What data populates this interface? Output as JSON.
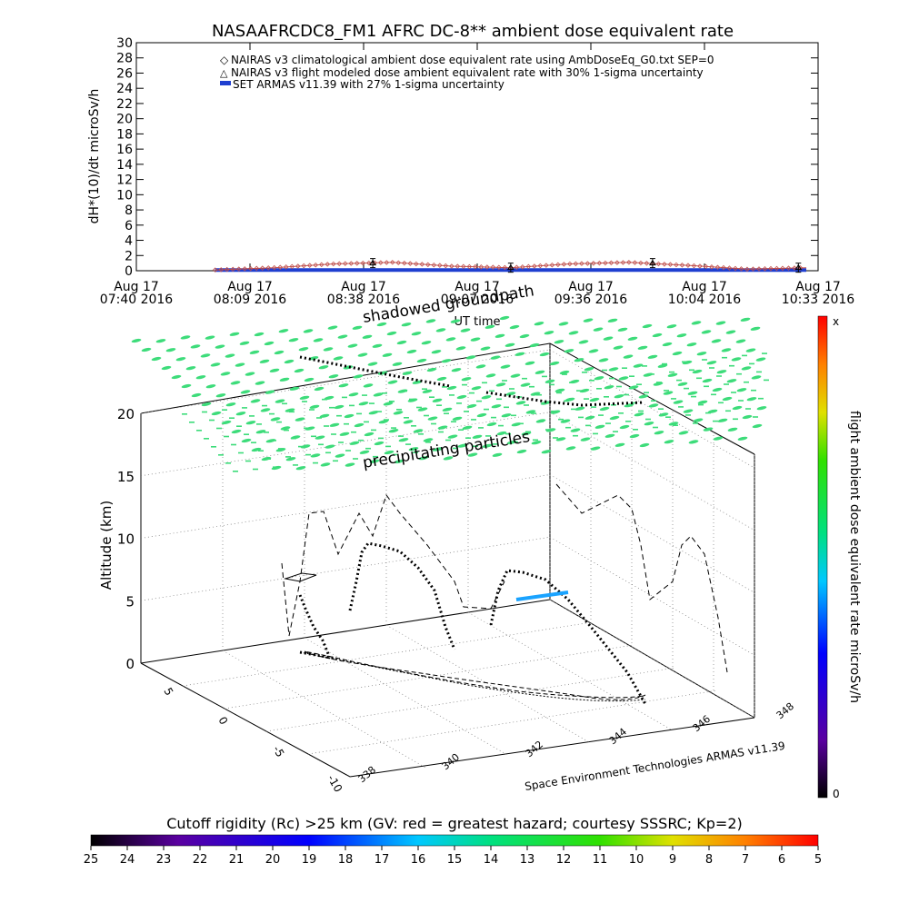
{
  "title": "NASAAFRCDC8_FM1 AFRC DC-8** ambient dose equivalent rate",
  "top_chart": {
    "ylabel": "dH*(10)/dt microSv/h",
    "xlabel": "UT time",
    "ylim": [
      0,
      30
    ],
    "yticks": [
      "0",
      "2",
      "4",
      "6",
      "8",
      "10",
      "12",
      "14",
      "16",
      "18",
      "20",
      "22",
      "24",
      "26",
      "28",
      "30"
    ],
    "xticks": [
      {
        "date": "Aug 17",
        "time": "07:40 2016"
      },
      {
        "date": "Aug 17",
        "time": "08:09 2016"
      },
      {
        "date": "Aug 17",
        "time": "08:38 2016"
      },
      {
        "date": "Aug 17",
        "time": "09:07 2016"
      },
      {
        "date": "Aug 17",
        "time": "09:36 2016"
      },
      {
        "date": "Aug 17",
        "time": "10:04 2016"
      },
      {
        "date": "Aug 17",
        "time": "10:33 2016"
      }
    ],
    "legend": [
      {
        "label": "NAIRAS v3 climatological ambient dose equivalent rate using AmbDoseEq_G0.txt SEP=0",
        "color": "#c0504d",
        "marker": "diamond"
      },
      {
        "label": "NAIRAS v3 flight modeled dose ambient equivalent rate with 30% 1-sigma uncertainty",
        "color": "#000000",
        "marker": "triangle"
      },
      {
        "label": "SET ARMAS v11.39 with 27% 1-sigma uncertainty",
        "color": "#1f3fd0",
        "marker": "bar"
      }
    ]
  },
  "scene": {
    "shadowed_groundpath_label": "shadowed groundpath",
    "precipitating_label": "precipitating particles",
    "altitude_label": "Altitude (km)",
    "altitude_ticks": [
      "0",
      "5",
      "10",
      "15",
      "20"
    ],
    "lat_ticks": [
      "5",
      "0",
      "-5",
      "-10"
    ],
    "lon_ticks": [
      "338",
      "340",
      "342",
      "344",
      "346",
      "348"
    ],
    "credit": "Space Environment Technologies ARMAS v11.39",
    "cloud_color": "#3ddc7a"
  },
  "colorbar_right": {
    "label": "flight ambient dose equivalent rate microSv/h",
    "top_label": "x",
    "bottom_label": "0"
  },
  "colorbar_bottom": {
    "title": "Cutoff rigidity (Rc) >25 km (GV: red = greatest hazard; courtesy SSSRC; Kp=2)",
    "ticks": [
      "25",
      "24",
      "23",
      "22",
      "21",
      "20",
      "19",
      "18",
      "17",
      "16",
      "15",
      "14",
      "13",
      "12",
      "11",
      "10",
      "9",
      "8",
      "7",
      "6",
      "5"
    ]
  },
  "chart_data": {
    "type": "line",
    "title": "NASAAFRCDC8_FM1 AFRC DC-8** ambient dose equivalent rate",
    "xlabel": "UT time",
    "ylabel": "dH*(10)/dt microSv/h",
    "ylim": [
      0,
      30
    ],
    "x": [
      "08:00",
      "08:15",
      "08:30",
      "08:45",
      "09:00",
      "09:15",
      "09:30",
      "09:45",
      "10:00",
      "10:15",
      "10:30"
    ],
    "series": [
      {
        "name": "NAIRAS v3 climatological ambient dose equivalent rate using AmbDoseEq_G0.txt SEP=0",
        "values": [
          0.1,
          0.4,
          0.9,
          1.1,
          0.6,
          0.4,
          0.9,
          1.1,
          0.7,
          0.2,
          0.4
        ]
      },
      {
        "name": "NAIRAS v3 flight modeled dose ambient equivalent rate with 30% 1-sigma uncertainty",
        "points": [
          {
            "x": "08:40",
            "y": 1.0
          },
          {
            "x": "09:15",
            "y": 0.4
          },
          {
            "x": "09:51",
            "y": 1.0
          },
          {
            "x": "10:28",
            "y": 0.4
          }
        ]
      },
      {
        "name": "SET ARMAS v11.39 with 27% 1-sigma uncertainty",
        "values": [
          0.1,
          0.1,
          0.1,
          0.1,
          0.1,
          0.1,
          0.1,
          0.1,
          0.1,
          0.1,
          0.1
        ]
      }
    ],
    "grid": false,
    "legend": "top"
  }
}
